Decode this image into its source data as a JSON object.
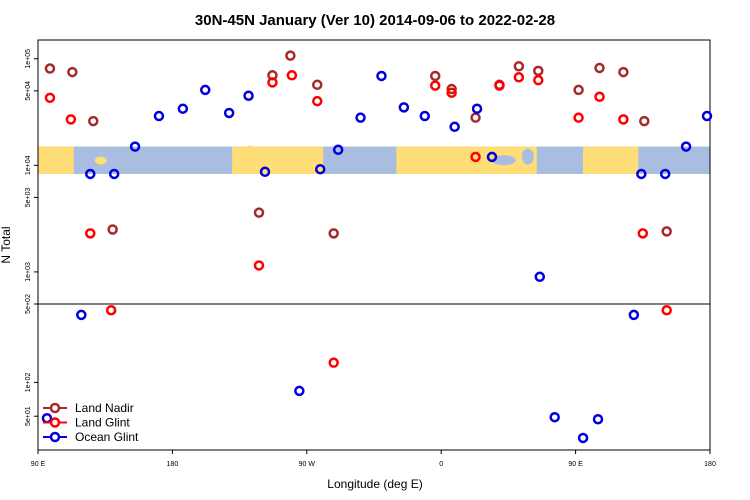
{
  "chart_data": {
    "type": "scatter",
    "title": "30N-45N January (Ver 10)   2014-09-06 to 2022-02-28",
    "xlabel": "Longitude (deg E)",
    "ylabel": "N Total",
    "x_ticks": [
      {
        "value": -90,
        "label": "90 E"
      },
      {
        "value": 0,
        "label": "180"
      },
      {
        "value": 90,
        "label": "90 W"
      },
      {
        "value": 180,
        "label": "0"
      },
      {
        "value": 270,
        "label": "90 E"
      },
      {
        "value": 360,
        "label": "180"
      }
    ],
    "x_axis_note": "x is longitude offset in degrees starting from 90 E, wrapping once around the globe",
    "xlim": [
      -90,
      360
    ],
    "upper_panel": {
      "scale": "log",
      "ylim": [
        500,
        150000
      ],
      "y_ticks": [
        {
          "value": 1000,
          "label": "1e+03"
        },
        {
          "value": 5000,
          "label": "5e+03"
        },
        {
          "value": 10000,
          "label": "1e+04"
        },
        {
          "value": 50000,
          "label": "5e+04"
        },
        {
          "value": 100000,
          "label": "1e+05"
        }
      ],
      "map_band": {
        "land_color": "#ffdd77",
        "ocean_color": "#a8bde0"
      }
    },
    "lower_panel": {
      "scale": "log",
      "ylim": [
        25,
        500
      ],
      "y_ticks": [
        {
          "value": 50,
          "label": "5e+01"
        },
        {
          "value": 100,
          "label": "1e+02"
        },
        {
          "value": 500,
          "label": "5e+02"
        }
      ]
    },
    "series": [
      {
        "name": "Land Nadir",
        "color": "#a52a2a",
        "points": [
          {
            "x": -82,
            "y": 81000
          },
          {
            "x": -67,
            "y": 75000
          },
          {
            "x": -53,
            "y": 26000
          },
          {
            "x": -40,
            "y": 2500
          },
          {
            "x": 58,
            "y": 3600
          },
          {
            "x": 67,
            "y": 70000
          },
          {
            "x": 79,
            "y": 107000
          },
          {
            "x": 97,
            "y": 57000
          },
          {
            "x": 108,
            "y": 2300
          },
          {
            "x": 176,
            "y": 69000
          },
          {
            "x": 187,
            "y": 52000
          },
          {
            "x": 203,
            "y": 28000
          },
          {
            "x": 219,
            "y": 57000
          },
          {
            "x": 232,
            "y": 85000
          },
          {
            "x": 245,
            "y": 77000
          },
          {
            "x": 272,
            "y": 51000
          },
          {
            "x": 286,
            "y": 82000
          },
          {
            "x": 302,
            "y": 75000
          },
          {
            "x": 316,
            "y": 26000
          },
          {
            "x": 331,
            "y": 2400
          }
        ]
      },
      {
        "name": "Land Glint",
        "color": "#ff0000",
        "points": [
          {
            "x": -82,
            "y": 43000
          },
          {
            "x": -68,
            "y": 27000
          },
          {
            "x": -55,
            "y": 2300
          },
          {
            "x": -41,
            "y": 440
          },
          {
            "x": 58,
            "y": 1150
          },
          {
            "x": 67,
            "y": 60000
          },
          {
            "x": 80,
            "y": 70000
          },
          {
            "x": 97,
            "y": 40000
          },
          {
            "x": 108,
            "y": 150
          },
          {
            "x": 176,
            "y": 56000
          },
          {
            "x": 187,
            "y": 48000
          },
          {
            "x": 203,
            "y": 12000
          },
          {
            "x": 219,
            "y": 56000
          },
          {
            "x": 232,
            "y": 67000
          },
          {
            "x": 245,
            "y": 63000
          },
          {
            "x": 272,
            "y": 28000
          },
          {
            "x": 286,
            "y": 44000
          },
          {
            "x": 302,
            "y": 27000
          },
          {
            "x": 315,
            "y": 2300
          },
          {
            "x": 331,
            "y": 440
          }
        ]
      },
      {
        "name": "Ocean Glint",
        "color": "#0000dd",
        "points": [
          {
            "x": -84,
            "y": 48
          },
          {
            "x": -61,
            "y": 400
          },
          {
            "x": -55,
            "y": 8300
          },
          {
            "x": -39,
            "y": 8300
          },
          {
            "x": -25,
            "y": 15000
          },
          {
            "x": -9,
            "y": 29000
          },
          {
            "x": 7,
            "y": 34000
          },
          {
            "x": 22,
            "y": 51000
          },
          {
            "x": 38,
            "y": 31000
          },
          {
            "x": 51,
            "y": 45000
          },
          {
            "x": 62,
            "y": 8700
          },
          {
            "x": 85,
            "y": 84
          },
          {
            "x": 99,
            "y": 9200
          },
          {
            "x": 111,
            "y": 14000
          },
          {
            "x": 126,
            "y": 28000
          },
          {
            "x": 140,
            "y": 69000
          },
          {
            "x": 155,
            "y": 35000
          },
          {
            "x": 169,
            "y": 29000
          },
          {
            "x": 189,
            "y": 23000
          },
          {
            "x": 214,
            "y": 12000
          },
          {
            "x": 204,
            "y": 34000
          },
          {
            "x": 246,
            "y": 900
          },
          {
            "x": 256,
            "y": 49
          },
          {
            "x": 275,
            "y": 32
          },
          {
            "x": 285,
            "y": 47
          },
          {
            "x": 309,
            "y": 400
          },
          {
            "x": 314,
            "y": 8300
          },
          {
            "x": 330,
            "y": 8300
          },
          {
            "x": 344,
            "y": 15000
          },
          {
            "x": 358,
            "y": 29000
          }
        ]
      }
    ],
    "legend": {
      "placement": "bottom-left"
    }
  }
}
